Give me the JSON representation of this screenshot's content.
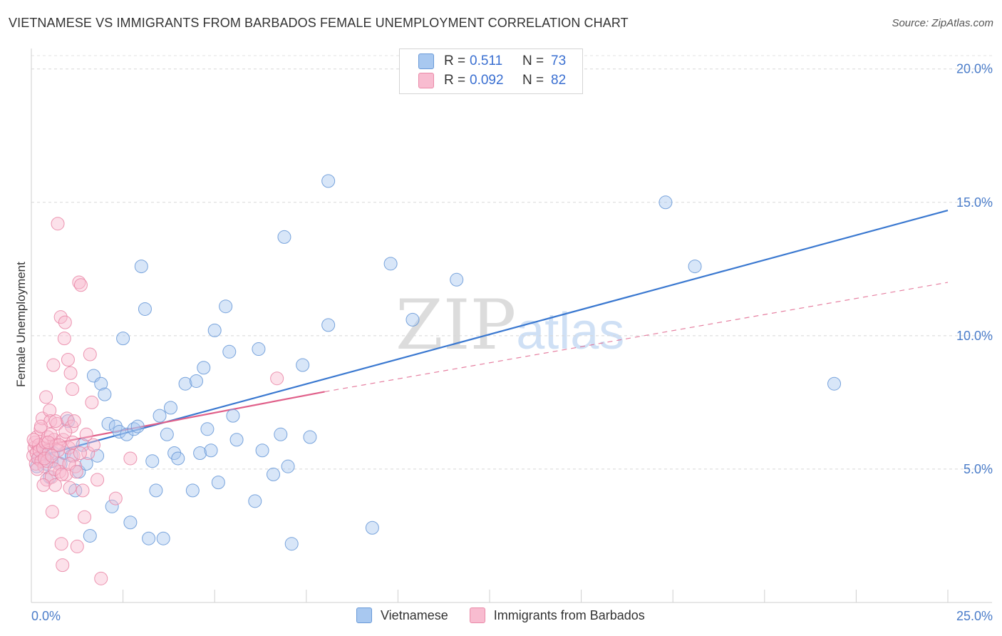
{
  "title": "VIETNAMESE VS IMMIGRANTS FROM BARBADOS FEMALE UNEMPLOYMENT CORRELATION CHART",
  "source": "Source: ZipAtlas.com",
  "watermark": {
    "zip": "ZIP",
    "atlas": "atlas"
  },
  "legend": {
    "rows": [
      {
        "r_label": "R =",
        "r_value": "0.511",
        "n_label": "N =",
        "n_value": "73",
        "color": "#a8c8f0",
        "stroke": "#6a9ad8"
      },
      {
        "r_label": "R =",
        "r_value": "0.092",
        "n_label": "N =",
        "n_value": "82",
        "color": "#f8bcd0",
        "stroke": "#ea8aa8"
      }
    ]
  },
  "bottom_legend": [
    "Vietnamese",
    "Immigrants from Barbados"
  ],
  "chart_data": {
    "type": "scatter",
    "title": "VIETNAMESE VS IMMIGRANTS FROM BARBADOS FEMALE UNEMPLOYMENT CORRELATION CHART",
    "xlabel": "",
    "ylabel": "Female Unemployment",
    "xlim": [
      0,
      25
    ],
    "ylim": [
      0,
      20.5
    ],
    "x_tick_labels": [
      "0.0%",
      "25.0%"
    ],
    "y_ticks": [
      5,
      10,
      15,
      20
    ],
    "y_tick_labels": [
      "5.0%",
      "10.0%",
      "15.0%",
      "20.0%"
    ],
    "series": [
      {
        "name": "Vietnamese",
        "color": "#a8c8f0",
        "stroke": "#6a9ad8",
        "trend": {
          "x": [
            0,
            25
          ],
          "y": [
            5.4,
            14.7
          ],
          "color": "#3a78d0",
          "style": "solid"
        },
        "points": [
          [
            0.2,
            5.4
          ],
          [
            0.3,
            5.6
          ],
          [
            0.4,
            5.2
          ],
          [
            0.5,
            4.7
          ],
          [
            0.6,
            5.6
          ],
          [
            0.8,
            5.2
          ],
          [
            0.9,
            5.6
          ],
          [
            1.0,
            6.8
          ],
          [
            1.1,
            5.5
          ],
          [
            1.2,
            4.2
          ],
          [
            1.3,
            4.9
          ],
          [
            1.4,
            5.9
          ],
          [
            1.5,
            5.2
          ],
          [
            1.6,
            2.5
          ],
          [
            1.7,
            8.5
          ],
          [
            1.8,
            5.5
          ],
          [
            1.9,
            8.2
          ],
          [
            2.0,
            7.8
          ],
          [
            2.1,
            6.7
          ],
          [
            2.2,
            3.6
          ],
          [
            2.3,
            6.6
          ],
          [
            2.4,
            6.4
          ],
          [
            2.5,
            9.9
          ],
          [
            2.6,
            6.3
          ],
          [
            2.7,
            3.0
          ],
          [
            2.8,
            6.5
          ],
          [
            2.9,
            6.6
          ],
          [
            3.0,
            12.6
          ],
          [
            3.1,
            11.0
          ],
          [
            3.2,
            2.4
          ],
          [
            3.3,
            5.3
          ],
          [
            3.4,
            4.2
          ],
          [
            3.5,
            7.0
          ],
          [
            3.6,
            2.4
          ],
          [
            3.7,
            6.3
          ],
          [
            3.8,
            7.3
          ],
          [
            3.9,
            5.6
          ],
          [
            4.0,
            5.4
          ],
          [
            4.2,
            8.2
          ],
          [
            4.4,
            4.2
          ],
          [
            4.5,
            8.3
          ],
          [
            4.6,
            5.6
          ],
          [
            4.7,
            8.8
          ],
          [
            4.8,
            6.5
          ],
          [
            4.9,
            5.7
          ],
          [
            5.0,
            10.2
          ],
          [
            5.1,
            4.5
          ],
          [
            5.3,
            11.1
          ],
          [
            5.4,
            9.4
          ],
          [
            5.5,
            7.0
          ],
          [
            5.6,
            6.1
          ],
          [
            6.1,
            3.8
          ],
          [
            6.2,
            9.5
          ],
          [
            6.3,
            5.7
          ],
          [
            6.6,
            4.8
          ],
          [
            6.8,
            6.3
          ],
          [
            6.9,
            13.7
          ],
          [
            7.0,
            5.1
          ],
          [
            7.1,
            2.2
          ],
          [
            7.4,
            8.9
          ],
          [
            7.6,
            6.2
          ],
          [
            8.1,
            10.4
          ],
          [
            8.1,
            15.8
          ],
          [
            9.3,
            2.8
          ],
          [
            9.8,
            12.7
          ],
          [
            10.4,
            10.6
          ],
          [
            11.6,
            12.1
          ],
          [
            17.3,
            15.0
          ],
          [
            18.1,
            12.6
          ],
          [
            21.9,
            8.2
          ],
          [
            0.15,
            5.1
          ],
          [
            0.35,
            5.5
          ],
          [
            0.55,
            5.3
          ]
        ]
      },
      {
        "name": "Immigrants from Barbados",
        "color": "#f8bcd0",
        "stroke": "#ea8aa8",
        "trend": {
          "x": [
            0,
            8
          ],
          "y": [
            5.8,
            7.9
          ],
          "dash_x": [
            8,
            25
          ],
          "dash_y": [
            7.9,
            12.0
          ],
          "color": "#e0608a",
          "style": "solid-then-dashed"
        },
        "points": [
          [
            0.05,
            5.5
          ],
          [
            0.08,
            5.8
          ],
          [
            0.1,
            6.0
          ],
          [
            0.12,
            5.2
          ],
          [
            0.14,
            5.6
          ],
          [
            0.15,
            6.2
          ],
          [
            0.18,
            5.4
          ],
          [
            0.2,
            5.9
          ],
          [
            0.22,
            5.7
          ],
          [
            0.25,
            6.5
          ],
          [
            0.27,
            5.3
          ],
          [
            0.3,
            6.9
          ],
          [
            0.32,
            5.8
          ],
          [
            0.35,
            5.1
          ],
          [
            0.38,
            6.0
          ],
          [
            0.4,
            7.7
          ],
          [
            0.42,
            4.6
          ],
          [
            0.45,
            6.2
          ],
          [
            0.47,
            5.6
          ],
          [
            0.5,
            7.2
          ],
          [
            0.52,
            6.8
          ],
          [
            0.55,
            4.7
          ],
          [
            0.57,
            3.4
          ],
          [
            0.6,
            8.9
          ],
          [
            0.62,
            6.1
          ],
          [
            0.65,
            4.4
          ],
          [
            0.67,
            5.9
          ],
          [
            0.7,
            6.7
          ],
          [
            0.72,
            14.2
          ],
          [
            0.75,
            5.2
          ],
          [
            0.77,
            4.9
          ],
          [
            0.8,
            10.7
          ],
          [
            0.82,
            2.2
          ],
          [
            0.85,
            1.4
          ],
          [
            0.87,
            6.1
          ],
          [
            0.9,
            9.9
          ],
          [
            0.92,
            10.5
          ],
          [
            0.95,
            4.8
          ],
          [
            0.97,
            6.9
          ],
          [
            1.0,
            9.1
          ],
          [
            1.02,
            5.8
          ],
          [
            1.05,
            4.3
          ],
          [
            1.07,
            8.6
          ],
          [
            1.1,
            6.6
          ],
          [
            1.12,
            8.0
          ],
          [
            1.15,
            5.5
          ],
          [
            1.17,
            6.8
          ],
          [
            1.2,
            5.1
          ],
          [
            1.25,
            2.1
          ],
          [
            1.3,
            12.0
          ],
          [
            1.35,
            11.9
          ],
          [
            1.4,
            4.2
          ],
          [
            1.45,
            3.2
          ],
          [
            1.5,
            6.3
          ],
          [
            1.55,
            5.6
          ],
          [
            1.6,
            9.3
          ],
          [
            1.65,
            7.5
          ],
          [
            1.7,
            5.9
          ],
          [
            1.8,
            4.6
          ],
          [
            1.9,
            0.9
          ],
          [
            2.3,
            3.9
          ],
          [
            2.7,
            5.4
          ],
          [
            6.7,
            8.4
          ],
          [
            0.33,
            4.4
          ],
          [
            0.43,
            5.3
          ],
          [
            0.53,
            6.3
          ],
          [
            0.63,
            5.0
          ],
          [
            0.73,
            5.7
          ],
          [
            0.83,
            4.8
          ],
          [
            0.93,
            6.4
          ],
          [
            1.03,
            5.2
          ],
          [
            1.13,
            6.0
          ],
          [
            1.23,
            4.9
          ],
          [
            1.33,
            5.6
          ],
          [
            0.06,
            6.1
          ],
          [
            0.16,
            5.0
          ],
          [
            0.26,
            6.6
          ],
          [
            0.36,
            5.4
          ],
          [
            0.46,
            6.0
          ],
          [
            0.56,
            5.5
          ],
          [
            0.66,
            6.8
          ],
          [
            0.76,
            5.9
          ]
        ]
      }
    ]
  }
}
